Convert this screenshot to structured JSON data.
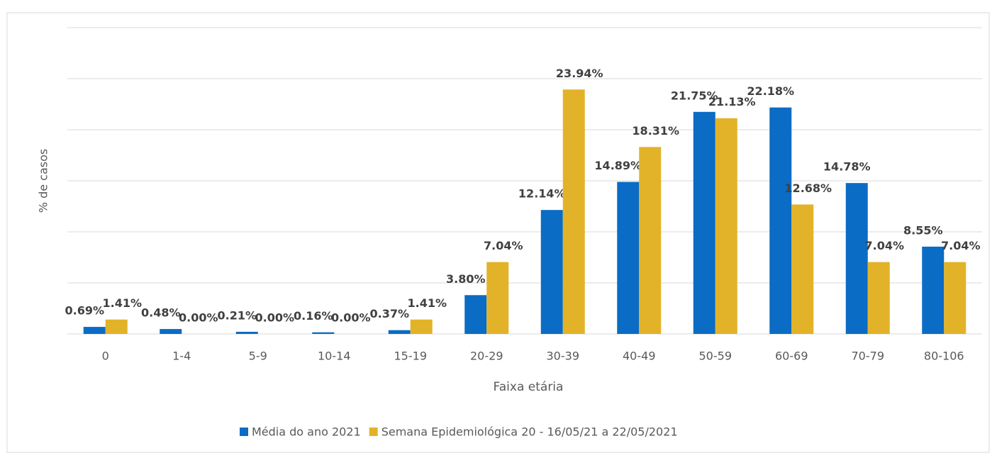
{
  "chart_data": {
    "type": "bar",
    "y_label": "% de casos",
    "x_label": "Faixa etária",
    "categories": [
      "0",
      "1-4",
      "5-9",
      "10-14",
      "15-19",
      "20-29",
      "30-39",
      "40-49",
      "50-59",
      "60-69",
      "70-79",
      "80-106"
    ],
    "series": [
      {
        "name": "Média do ano 2021",
        "color": "#0a6cc4",
        "values": [
          0.69,
          0.48,
          0.21,
          0.16,
          0.37,
          3.8,
          12.14,
          14.89,
          21.75,
          22.18,
          14.78,
          8.55
        ],
        "value_labels": [
          "0.69%",
          "0.48%",
          "0.21%",
          "0.16%",
          "0.37%",
          "3.80%",
          "12.14%",
          "14.89%",
          "21.75%",
          "22.18%",
          "14.78%",
          "8.55%"
        ]
      },
      {
        "name": "Semana Epidemiológica 20 - 16/05/21 a 22/05/2021",
        "color": "#e2b329",
        "values": [
          1.41,
          0.0,
          0.0,
          0.0,
          1.41,
          7.04,
          23.94,
          18.31,
          21.13,
          12.68,
          7.04,
          7.04
        ],
        "value_labels": [
          "1.41%",
          "0.00%",
          "0.00%",
          "0.00%",
          "1.41%",
          "7.04%",
          "23.94%",
          "18.31%",
          "21.13%",
          "12.68%",
          "7.04%",
          "7.04%"
        ]
      }
    ],
    "ylim": [
      0,
      30
    ],
    "grid_values": [
      0,
      5,
      10,
      15,
      20,
      25,
      30
    ],
    "grid": true,
    "legend": "bottom"
  }
}
